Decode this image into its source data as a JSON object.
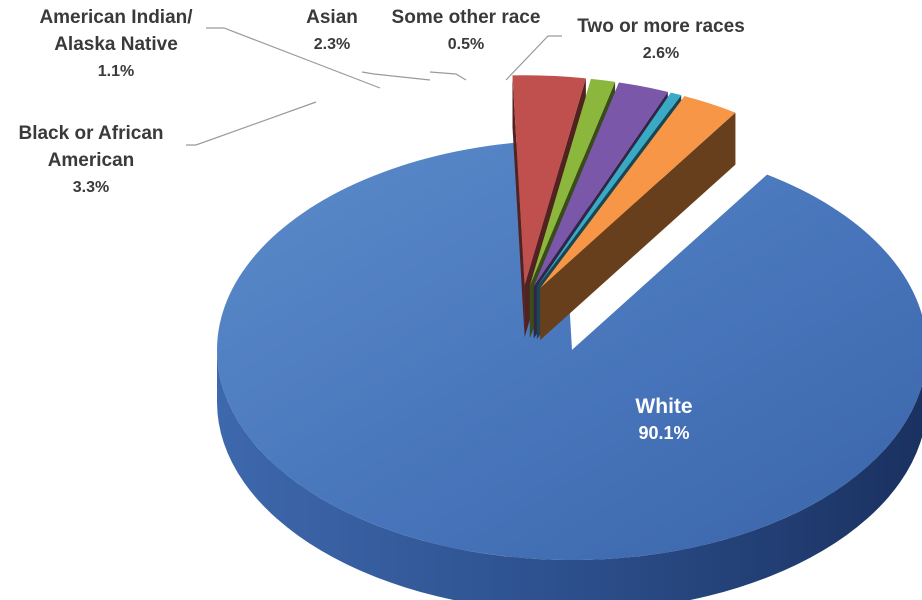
{
  "chart_data": {
    "type": "pie",
    "style": "3d-exploded",
    "slices": [
      {
        "name": "White",
        "value": 90.1,
        "label": "90.1%",
        "color": "#4a78bd"
      },
      {
        "name": "Black or African American",
        "value": 3.3,
        "label": "3.3%",
        "color": "#c0504d"
      },
      {
        "name": "American Indian/ Alaska Native",
        "value": 1.1,
        "label": "1.1%",
        "color": "#8bb83c"
      },
      {
        "name": "Asian",
        "value": 2.3,
        "label": "2.3%",
        "color": "#7a57a8"
      },
      {
        "name": "Some other race",
        "value": 0.5,
        "label": "0.5%",
        "color": "#3aa9c6"
      },
      {
        "name": "Two or more races",
        "value": 2.6,
        "label": "2.6%",
        "color": "#f79646"
      }
    ],
    "labels": {
      "white": {
        "name": "White",
        "pct": "90.1%"
      },
      "black": {
        "name_line1": "Black or African",
        "name_line2": "American",
        "pct": "3.3%"
      },
      "amind": {
        "name_line1": "American Indian/",
        "name_line2": "Alaska Native",
        "pct": "1.1%"
      },
      "asian": {
        "name": "Asian",
        "pct": "2.3%"
      },
      "other": {
        "name": "Some other race",
        "pct": "0.5%"
      },
      "two": {
        "name": "Two or more races",
        "pct": "2.6%"
      }
    }
  }
}
